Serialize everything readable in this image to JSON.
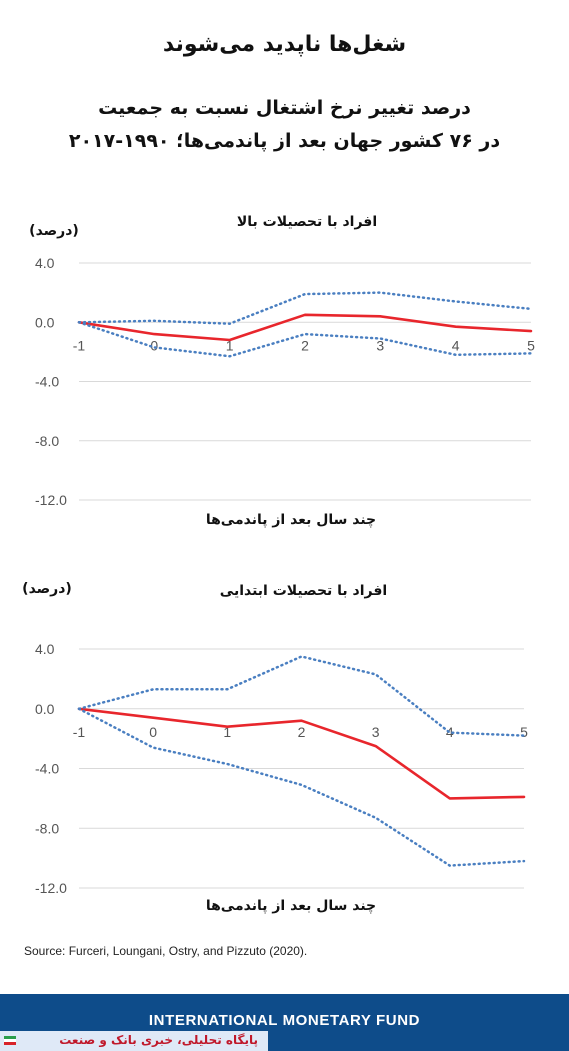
{
  "header": {
    "title": "شغل‌ها ناپدید می‌شوند",
    "subtitle_line1": "درصد تغییر نرخ اشتغال نسبت به جمعیت",
    "subtitle_line2": "در ۷۶ کشور جهان بعد از پاندمی‌ها؛ ۱۹۹۰-۲۰۱۷"
  },
  "chart_data": [
    {
      "type": "line",
      "title": "افراد با تحصیلات بالا",
      "xlabel": "چند سال بعد از پاندمی‌ها",
      "ylabel": "(درصد)",
      "x": [
        "-1",
        "0",
        "1",
        "2",
        "3",
        "4",
        "5"
      ],
      "yticks": [
        "4.0",
        "0.0",
        "-4.0",
        "-8.0",
        "-12.0"
      ],
      "ylim": [
        -12,
        4
      ],
      "grid": true,
      "series": [
        {
          "style": "solid",
          "color": "#e8262c",
          "values": [
            0.0,
            -0.8,
            -1.2,
            0.5,
            0.4,
            -0.3,
            -0.6
          ]
        },
        {
          "style": "dotted",
          "color": "#4a7fc1",
          "values": [
            0.0,
            0.1,
            -0.1,
            1.9,
            2.0,
            1.4,
            0.9
          ]
        },
        {
          "style": "dotted",
          "color": "#4a7fc1",
          "values": [
            0.0,
            -1.7,
            -2.3,
            -0.8,
            -1.1,
            -2.2,
            -2.1
          ]
        }
      ]
    },
    {
      "type": "line",
      "title": "افراد با تحصیلات ابتدایی",
      "xlabel": "چند سال بعد از پاندمی‌ها",
      "ylabel": "(درصد)",
      "x": [
        "-1",
        "0",
        "1",
        "2",
        "3",
        "4",
        "5"
      ],
      "yticks": [
        "4.0",
        "0.0",
        "-4.0",
        "-8.0",
        "-12.0"
      ],
      "ylim": [
        -12,
        4
      ],
      "grid": true,
      "series": [
        {
          "style": "solid",
          "color": "#e8262c",
          "values": [
            0.0,
            -0.6,
            -1.2,
            -0.8,
            -2.5,
            -6.0,
            -5.9
          ]
        },
        {
          "style": "dotted",
          "color": "#4a7fc1",
          "values": [
            0.0,
            1.3,
            1.3,
            3.5,
            2.3,
            -1.6,
            -1.8
          ]
        },
        {
          "style": "dotted",
          "color": "#4a7fc1",
          "values": [
            0.0,
            -2.6,
            -3.7,
            -5.1,
            -7.3,
            -10.5,
            -10.2
          ]
        }
      ]
    }
  ],
  "source": "Source: Furceri, Loungani, Ostry, and Pizzuto (2020).",
  "footer": {
    "org": "INTERNATIONAL MONETARY FUND"
  },
  "watermark": {
    "text": "پایگاه تحلیلی، خبری بانک و صنعت"
  }
}
